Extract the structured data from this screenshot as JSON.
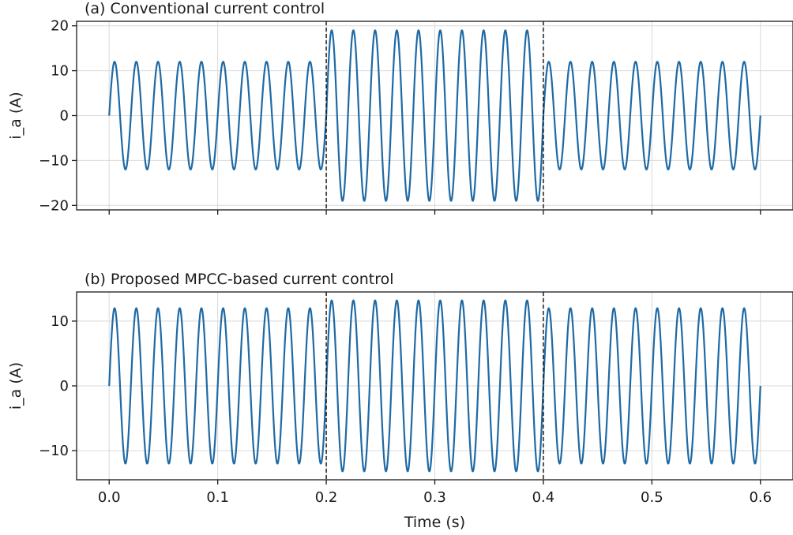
{
  "chart_data": [
    {
      "type": "line",
      "title": "(a) Conventional current control",
      "xlabel": "",
      "ylabel": "i_a (A)",
      "xlim": [
        -0.03,
        0.63
      ],
      "ylim": [
        -21,
        21
      ],
      "xticks": [
        0.0,
        0.1,
        0.2,
        0.3,
        0.4,
        0.5,
        0.6
      ],
      "xtick_labels": [],
      "yticks": [
        -20,
        -10,
        0,
        10,
        20
      ],
      "ytick_labels": [
        "−20",
        "−10",
        "0",
        "10",
        "20"
      ],
      "grid": true,
      "vlines": [
        0.2,
        0.4
      ],
      "series": [
        {
          "color": "#1f6aa5",
          "frequency_hz": 50,
          "segments": [
            {
              "t_start": 0.0,
              "t_end": 0.2,
              "amplitude": 12
            },
            {
              "t_start": 0.2,
              "t_end": 0.4,
              "amplitude": 19
            },
            {
              "t_start": 0.4,
              "t_end": 0.6,
              "amplitude": 12
            }
          ]
        }
      ]
    },
    {
      "type": "line",
      "title": "(b) Proposed MPCC-based current control",
      "xlabel": "Time (s)",
      "ylabel": "i_a (A)",
      "xlim": [
        -0.03,
        0.63
      ],
      "ylim": [
        -14.5,
        14.5
      ],
      "xticks": [
        0.0,
        0.1,
        0.2,
        0.3,
        0.4,
        0.5,
        0.6
      ],
      "xtick_labels": [
        "0.0",
        "0.1",
        "0.2",
        "0.3",
        "0.4",
        "0.5",
        "0.6"
      ],
      "yticks": [
        -10,
        0,
        10
      ],
      "ytick_labels": [
        "−10",
        "0",
        "10"
      ],
      "grid": true,
      "vlines": [
        0.2,
        0.4
      ],
      "series": [
        {
          "color": "#1f6aa5",
          "frequency_hz": 50,
          "segments": [
            {
              "t_start": 0.0,
              "t_end": 0.2,
              "amplitude": 12
            },
            {
              "t_start": 0.2,
              "t_end": 0.4,
              "amplitude": 13.2
            },
            {
              "t_start": 0.4,
              "t_end": 0.6,
              "amplitude": 12
            }
          ]
        }
      ]
    }
  ]
}
